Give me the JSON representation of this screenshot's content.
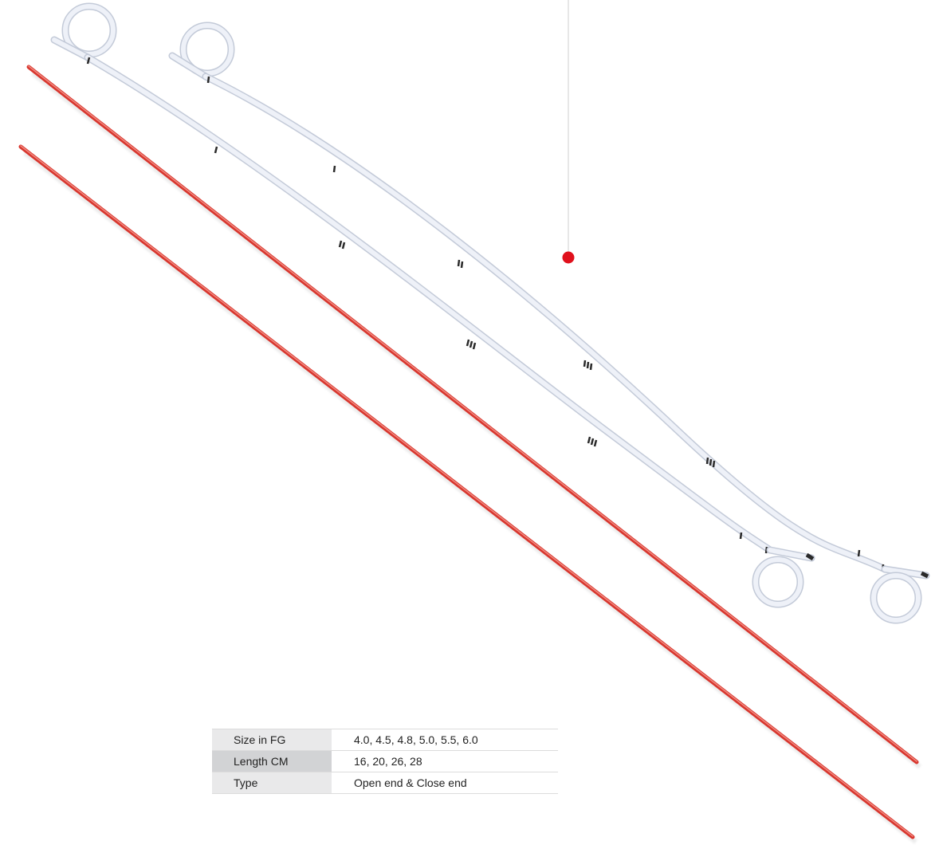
{
  "scene": {
    "description_icons": [
      "catheter-stent-icon",
      "guidewire-icon",
      "callout-dot-icon"
    ],
    "colors": {
      "stent_body": "#e8ecf6",
      "stent_outline": "#c3cad8",
      "stent_marker": "#2a2a2a",
      "guidewire": "#e0483e",
      "callout_dot": "#e0101c",
      "callout_line": "#cfcfcf"
    }
  },
  "specs": [
    {
      "label": "Size in FG",
      "value": "4.0, 4.5, 4.8, 5.0, 5.5, 6.0"
    },
    {
      "label": "Length CM",
      "value": "16, 20, 26,  28"
    },
    {
      "label": "Type",
      "value": "Open end & Close end"
    }
  ]
}
